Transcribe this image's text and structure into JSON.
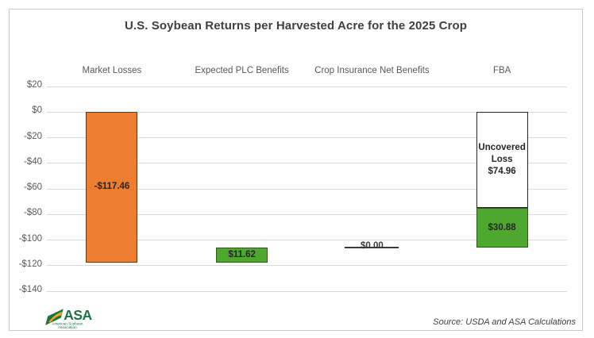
{
  "source_note": "Source: USDA and ASA Calculations",
  "logo": {
    "acronym": "ASA",
    "org_line1": "American Soybean",
    "org_line2": "Association",
    "green": "#1b7340",
    "gold": "#f0a81e"
  },
  "chart_data": {
    "type": "bar",
    "subtype": "floating-waterfall",
    "title": "U.S. Soybean Returns per Harvested Acre for the 2025 Crop",
    "xlabel": "",
    "ylabel": "",
    "categories": [
      "Market Losses",
      "Expected PLC Benefits",
      "Crop Insurance Net Benefits",
      "FBA"
    ],
    "ylim": [
      -140,
      20
    ],
    "grid": true,
    "gridline_color": "#d9d9d9",
    "axis_text_color": "#595959",
    "title_color": "#404040",
    "label_color": "#262626",
    "y_ticks": [
      {
        "value": 20,
        "label": "$20"
      },
      {
        "value": 0,
        "label": "$0"
      },
      {
        "value": -20,
        "label": "-$20"
      },
      {
        "value": -40,
        "label": "-$40"
      },
      {
        "value": -60,
        "label": "-$60"
      },
      {
        "value": -80,
        "label": "-$80"
      },
      {
        "value": -100,
        "label": "-$100"
      },
      {
        "value": -120,
        "label": "-$120"
      },
      {
        "value": -140,
        "label": "-$140"
      }
    ],
    "bars": [
      {
        "name": "market-losses",
        "category": "Market Losses",
        "segments": [
          {
            "label": "-$117.46",
            "value": -117.46,
            "from": 0,
            "to": -117.46,
            "fill": "#ED7D31",
            "border": "#6b3712"
          }
        ]
      },
      {
        "name": "expected-plc-benefits",
        "category": "Expected PLC Benefits",
        "segments": [
          {
            "label": "$11.62",
            "value": 11.62,
            "from": -105.84,
            "to": -117.46,
            "fill": "#4EA72E",
            "border": "#2f5a17"
          }
        ]
      },
      {
        "name": "crop-insurance-net-benefits",
        "category": "Crop Insurance Net Benefits",
        "marker": {
          "label": "$0.00",
          "value": 0.0,
          "at": -105.84,
          "line_color": "#3b3b3b"
        }
      },
      {
        "name": "fba",
        "category": "FBA",
        "segments": [
          {
            "label": "Uncovered\nLoss\n$74.96",
            "value": -74.96,
            "from": 0,
            "to": -74.96,
            "fill": "#ffffff",
            "border": "#262626"
          },
          {
            "label": "$30.88",
            "value": 30.88,
            "from": -74.96,
            "to": -105.84,
            "fill": "#4EA72E",
            "border": "#2f5a17"
          }
        ]
      }
    ]
  }
}
